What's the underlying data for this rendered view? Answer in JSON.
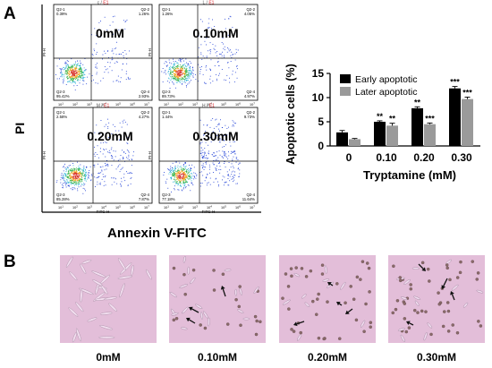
{
  "panel_a": {
    "letter": "A",
    "y_label": "PI",
    "x_label": "Annexin V-FITC",
    "flow_plots": [
      {
        "sample_id": "c",
        "sample_tag": "E1",
        "conc": "0mM",
        "q1_name": "Q2-1",
        "q1_val": "0.39%",
        "q2_name": "Q2-2",
        "q2_val": "1.26%",
        "q3_name": "Q2-3",
        "q3_val": "95.42%",
        "q4_name": "Q2-4",
        "q4_val": "2.93%"
      },
      {
        "sample_id": "L",
        "sample_tag": "E1",
        "conc": "0.10mM",
        "q1_name": "Q2-1",
        "q1_val": "1.26%",
        "q2_name": "Q2-2",
        "q2_val": "4.05%",
        "q3_name": "Q2-3",
        "q3_val": "89.73%",
        "q4_name": "Q2-4",
        "q4_val": "4.97%"
      },
      {
        "sample_id": "M",
        "sample_tag": "E1",
        "conc": "0.20mM",
        "q1_name": "Q2-1",
        "q1_val": "2.58%",
        "q2_name": "Q2-2",
        "q2_val": "4.27%",
        "q3_name": "Q2-3",
        "q3_val": "85.28%",
        "q4_name": "Q2-4",
        "q4_val": "7.87%"
      },
      {
        "sample_id": "H",
        "sample_tag": "E1",
        "conc": "0.30mM",
        "q1_name": "Q2-1",
        "q1_val": "1.44%",
        "q2_name": "Q2-2",
        "q2_val": "9.73%",
        "q3_name": "Q2-3",
        "q3_val": "77.18%",
        "q4_name": "Q2-4",
        "q4_val": "11.64%"
      }
    ],
    "flow_axis": {
      "x_title": "FITC-H",
      "y_title": "PI-H",
      "ticks": [
        "10^1",
        "10^2",
        "10^3",
        "10^4",
        "10^5",
        "10^6",
        "10^7"
      ]
    }
  },
  "chart_data": {
    "type": "bar",
    "title": "",
    "xlabel": "Tryptamine (mM)",
    "ylabel": "Apoptotic cells (%)",
    "ylim": [
      0,
      15
    ],
    "yticks": [
      "0",
      "5",
      "10",
      "15"
    ],
    "categories": [
      "0",
      "0.10",
      "0.20",
      "0.30"
    ],
    "series": [
      {
        "name": "Early apoptotic",
        "color": "#000000",
        "values": [
          2.8,
          5.0,
          7.8,
          11.9
        ],
        "errors": [
          0.4,
          0.2,
          0.3,
          0.4
        ],
        "significance": [
          "",
          "**",
          "**",
          "***"
        ]
      },
      {
        "name": "Later apoptotic",
        "color": "#9a9a9a",
        "values": [
          1.4,
          4.2,
          4.5,
          9.7
        ],
        "errors": [
          0.15,
          0.5,
          0.25,
          0.4
        ],
        "significance": [
          "",
          "**",
          "***",
          "***"
        ]
      }
    ],
    "legend_position": "top-left",
    "grid": false
  },
  "panel_b": {
    "letter": "B",
    "images": [
      {
        "conc": "0mM",
        "arrows": 0
      },
      {
        "conc": "0.10mM",
        "arrows": 3
      },
      {
        "conc": "0.20mM",
        "arrows": 4
      },
      {
        "conc": "0.30mM",
        "arrows": 4
      }
    ]
  },
  "colors": {
    "tag_red": "#e0262b",
    "flow_blue": "#1f3fd6",
    "micro_bg": "#e3bed9"
  }
}
